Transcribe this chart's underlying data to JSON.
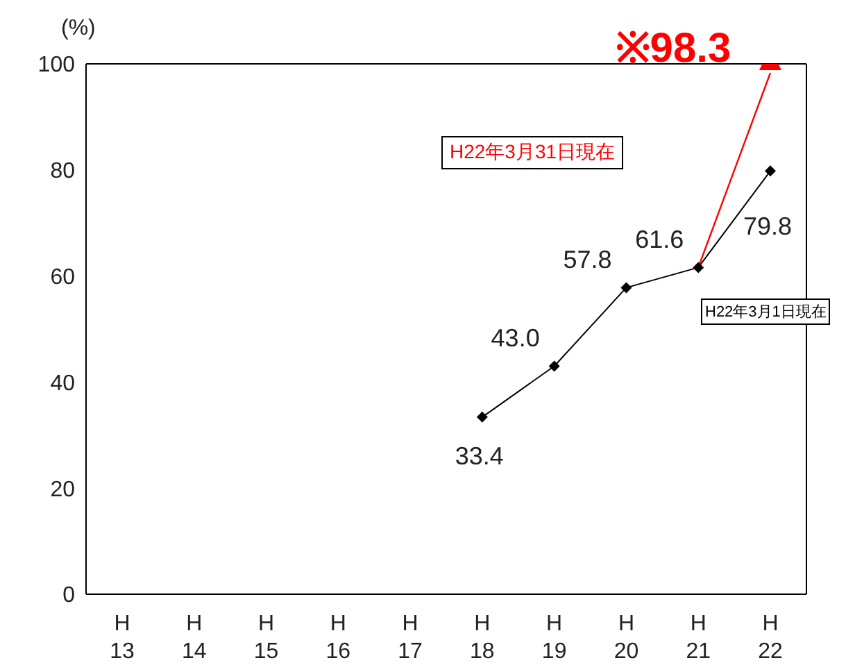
{
  "chart_data": {
    "type": "line",
    "ylabel": "(%)",
    "categories": [
      "H\n13",
      "H\n14",
      "H\n15",
      "H\n16",
      "H\n17",
      "H\n18",
      "H\n19",
      "H\n20",
      "H\n21",
      "H\n22"
    ],
    "series": [
      {
        "color": "#000000",
        "marker": "diamond",
        "values": [
          null,
          null,
          null,
          null,
          null,
          33.4,
          43.0,
          57.8,
          61.6,
          79.8
        ],
        "value_labels": [
          null,
          null,
          null,
          null,
          null,
          "33.4",
          "43.0",
          "57.8",
          "61.6",
          "79.8"
        ]
      },
      {
        "color": "#ff0000",
        "marker": "none",
        "values": [
          null,
          null,
          null,
          null,
          null,
          null,
          null,
          null,
          61.6,
          98.3
        ],
        "value_labels": [
          null,
          null,
          null,
          null,
          null,
          null,
          null,
          null,
          null,
          "※98.3"
        ]
      }
    ],
    "ylim": [
      0,
      100
    ],
    "yticks": [
      0,
      20,
      40,
      60,
      80,
      100
    ],
    "annotations": [
      "H22年3月31日現在",
      "H22年3月1日現在"
    ]
  }
}
